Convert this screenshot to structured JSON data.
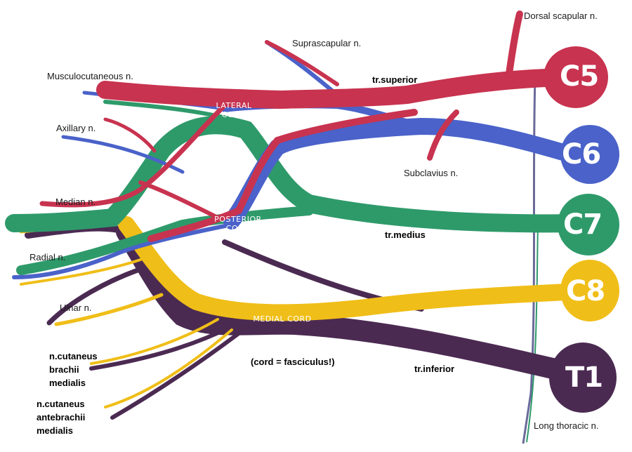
{
  "roots": {
    "c5": "C5",
    "c6": "C6",
    "c7": "C7",
    "c8": "C8",
    "t1": "T1"
  },
  "trunks": {
    "superior": "tr.superior",
    "medius": "tr.medius",
    "inferior": "tr.inferior"
  },
  "cords": {
    "lateral_1": "LATERAL",
    "lateral_2": "CORD",
    "posterior_1": "POSTERIOR",
    "posterior_2": "CORD",
    "medial": "MEDIAL CORD"
  },
  "nerves": {
    "dorsal_scapular": "Dorsal scapular n.",
    "suprascapular": "Suprascapular n.",
    "musculocutaneous": "Musculocutaneous n.",
    "axillary": "Axillary n.",
    "median": "Median n.",
    "radial": "Radial n.",
    "ulnar": "Ulnar n.",
    "subclavius": "Subclavius n.",
    "long_thoracic": "Long thoracic n.",
    "cut_brachii_1": "n.cutaneus",
    "cut_brachii_2": "brachii",
    "cut_brachii_3": "medialis",
    "cut_antebrachii_1": "n.cutaneus",
    "cut_antebrachii_2": "antebrachii",
    "cut_antebrachii_3": "medialis"
  },
  "note": "(cord = fasciculus!)",
  "colors": {
    "c5": "#c8334f",
    "c6": "#4a62c9",
    "c7": "#2e9a6a",
    "c8": "#f0be18",
    "t1": "#4b2a52"
  }
}
